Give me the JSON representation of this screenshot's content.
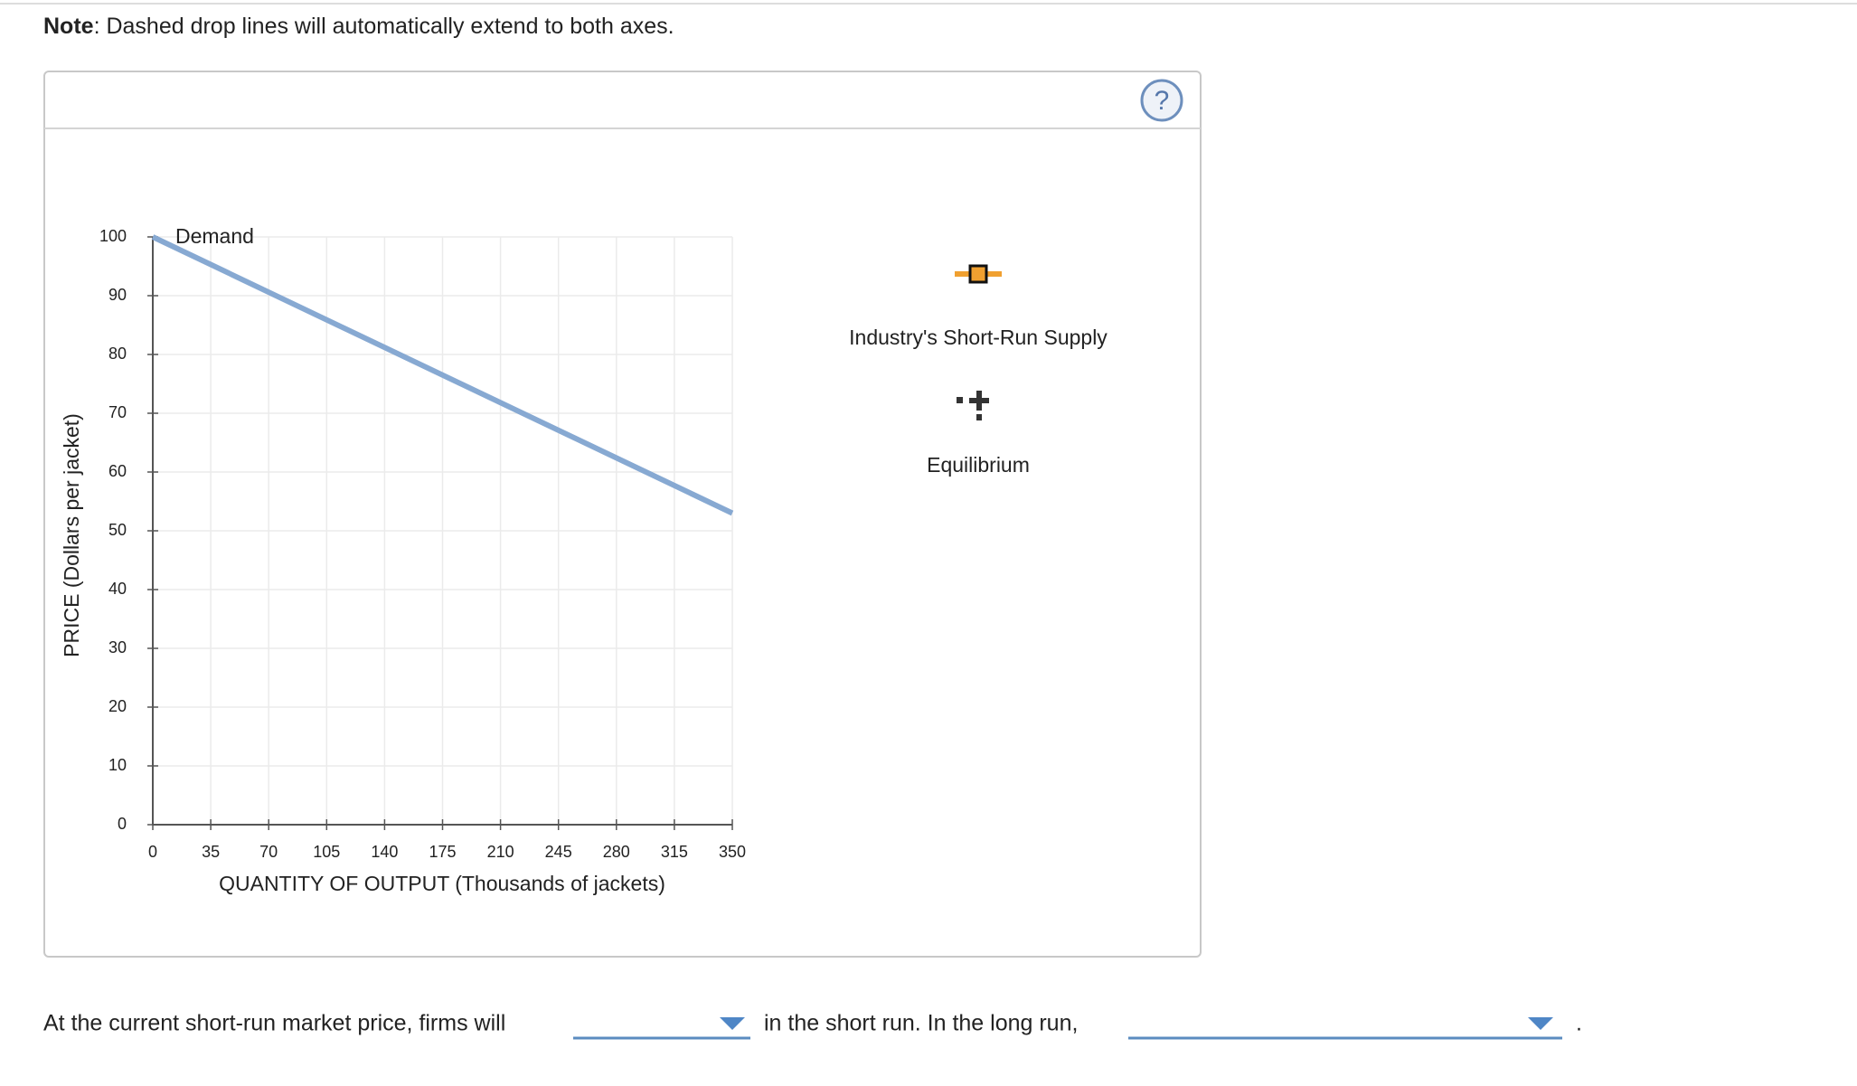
{
  "note": {
    "label": "Note",
    "text": ": Dashed drop lines will automatically extend to both axes."
  },
  "chart_data": {
    "type": "line",
    "xlabel": "QUANTITY OF OUTPUT (Thousands of jackets)",
    "ylabel": "PRICE (Dollars per jacket)",
    "xlim": [
      0,
      350
    ],
    "xticks": [
      0,
      35,
      70,
      105,
      140,
      175,
      210,
      245,
      280,
      315,
      350
    ],
    "ylim": [
      0,
      100
    ],
    "yticks": [
      0,
      10,
      20,
      30,
      40,
      50,
      60,
      70,
      80,
      90,
      100
    ],
    "grid": true,
    "series": [
      {
        "name": "Demand",
        "color": "#87a9d2",
        "x": [
          0,
          350
        ],
        "values": [
          100,
          53
        ]
      }
    ]
  },
  "palette": {
    "items": [
      {
        "label": "Industry's Short-Run Supply"
      },
      {
        "label": "Equilibrium"
      }
    ]
  },
  "question": {
    "part1": "At the current short-run market price, firms will",
    "part2": "in the short run. In the long run,",
    "part3": "."
  }
}
